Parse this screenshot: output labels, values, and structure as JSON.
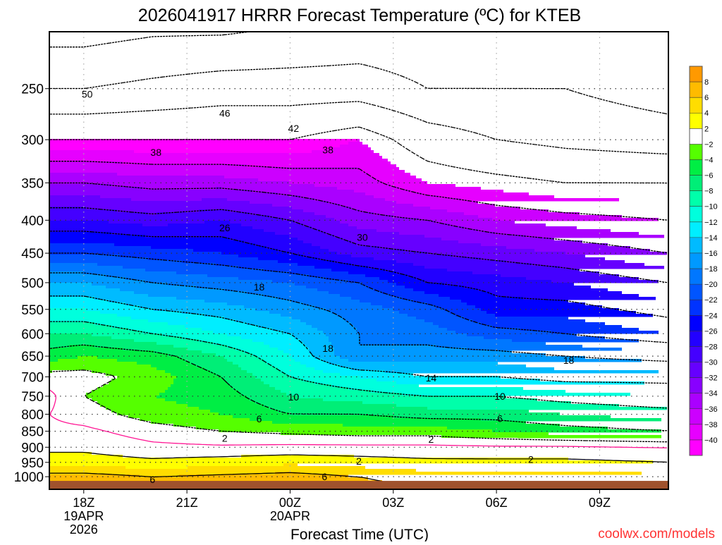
{
  "chart_data": {
    "type": "heatmap",
    "title": "2026041917 HRRR Forecast Temperature (ºC) for KTEB",
    "xlabel": "Forecast Time (UTC)",
    "ylabel": "",
    "x_hours": [
      0,
      1,
      3,
      5,
      7,
      9,
      11,
      13,
      15,
      18
    ],
    "x_range": [
      0,
      18
    ],
    "y_levels": [
      200,
      250,
      300,
      350,
      400,
      450,
      500,
      550,
      600,
      650,
      700,
      750,
      800,
      850,
      900,
      950,
      1000,
      1050
    ],
    "ylim": [
      204,
      1046
    ],
    "y_scale": "log",
    "y_reversed": true,
    "values": [
      [
        -56,
        -56,
        -55,
        -55,
        -54,
        -53,
        -53,
        -53,
        -53,
        -53
      ],
      [
        -50,
        -50,
        -49,
        -48,
        -48,
        -48,
        -50,
        -50,
        -50,
        -52
      ],
      [
        -42,
        -42,
        -42,
        -42,
        -42,
        -40,
        -44,
        -46,
        -47,
        -48
      ],
      [
        -34,
        -34,
        -35,
        -35,
        -36,
        -37,
        -40,
        -41,
        -42,
        -42
      ],
      [
        -28,
        -28,
        -29,
        -28,
        -30,
        -33,
        -34,
        -36,
        -37,
        -38
      ],
      [
        -22,
        -22,
        -23,
        -24,
        -26,
        -29,
        -30,
        -31,
        -32,
        -34
      ],
      [
        -16,
        -16,
        -18,
        -19,
        -20,
        -22,
        -26,
        -27,
        -28,
        -30
      ],
      [
        -12,
        -12,
        -14,
        -15,
        -17,
        -19,
        -21,
        -25,
        -25,
        -27
      ],
      [
        -8,
        -8,
        -10,
        -12,
        -14,
        -18,
        -19,
        -21,
        -22,
        -24
      ],
      [
        -5,
        -4,
        -5,
        -8,
        -12,
        -18,
        -17,
        -17,
        -18,
        -19
      ],
      [
        -1,
        -1,
        -3,
        -6,
        -10,
        -12,
        -14,
        -14,
        -15,
        -15
      ],
      [
        0.5,
        -2,
        -4,
        -5,
        -8,
        -9,
        -10,
        -10,
        -11,
        -12
      ],
      [
        0,
        -1,
        -3,
        -4,
        -6,
        -6,
        -7,
        -7,
        -8,
        -9
      ],
      [
        0.5,
        0.5,
        -1,
        -2,
        -2.5,
        -3,
        -3,
        -4,
        -5,
        -6
      ],
      [
        1.5,
        1.5,
        0.5,
        0.3,
        0.5,
        0.5,
        0.5,
        0.3,
        0.3,
        0
      ],
      [
        3,
        3,
        2.5,
        3,
        3.5,
        3,
        2.5,
        2.5,
        2.5,
        2
      ],
      [
        7,
        7,
        6,
        6.5,
        7,
        6,
        5,
        5,
        5,
        4.5
      ],
      [
        9,
        9,
        8,
        8,
        8,
        7,
        6,
        6,
        6,
        5
      ]
    ],
    "surface_pressure": 1015,
    "yticks": [
      "250",
      "300",
      "350",
      "400",
      "450",
      "500",
      "550",
      "600",
      "650",
      "700",
      "750",
      "800",
      "850",
      "900",
      "950",
      "1000"
    ],
    "xticks": [
      {
        "hour": 1,
        "label": "18Z",
        "sub1": "19APR",
        "sub2": "2026"
      },
      {
        "hour": 4,
        "label": "21Z"
      },
      {
        "hour": 7,
        "label": "00Z",
        "sub1": "20APR"
      },
      {
        "hour": 10,
        "label": "03Z"
      },
      {
        "hour": 13,
        "label": "06Z"
      },
      {
        "hour": 16,
        "label": "09Z"
      }
    ],
    "grid": true,
    "contour_levels": [
      -54,
      -50,
      -46,
      -42,
      -38,
      -34,
      -30,
      -26,
      -22,
      -18,
      -14,
      -10,
      -6,
      -2,
      0,
      2,
      6
    ],
    "contour_labels": [
      {
        "text": "50",
        "hour": 1.1,
        "p": 255
      },
      {
        "text": "46",
        "hour": 5.1,
        "p": 273
      },
      {
        "text": "42",
        "hour": 7.1,
        "p": 288
      },
      {
        "text": "38",
        "hour": 3.1,
        "p": 314
      },
      {
        "text": "38",
        "hour": 8.1,
        "p": 311
      },
      {
        "text": "26",
        "hour": 5.1,
        "p": 411
      },
      {
        "text": "30",
        "hour": 9.1,
        "p": 425
      },
      {
        "text": "18",
        "hour": 6.1,
        "p": 508
      },
      {
        "text": "18",
        "hour": 8.1,
        "p": 632
      },
      {
        "text": "18",
        "hour": 15.1,
        "p": 660
      },
      {
        "text": "14",
        "hour": 11.1,
        "p": 703
      },
      {
        "text": "10",
        "hour": 7.1,
        "p": 752
      },
      {
        "text": "10",
        "hour": 13.1,
        "p": 750
      },
      {
        "text": "6",
        "hour": 6.1,
        "p": 813
      },
      {
        "text": "6",
        "hour": 13.1,
        "p": 812
      },
      {
        "text": "2",
        "hour": 5.1,
        "p": 871
      },
      {
        "text": "2",
        "hour": 11.1,
        "p": 875
      },
      {
        "text": "2",
        "hour": 9.0,
        "p": 946
      },
      {
        "text": "2",
        "hour": 14.0,
        "p": 940
      },
      {
        "text": "6",
        "hour": 3.0,
        "p": 1010
      },
      {
        "text": "6",
        "hour": 8.0,
        "p": 1000
      }
    ],
    "colorbar": {
      "bounds": [
        -40,
        -38,
        -36,
        -34,
        -32,
        -30,
        -28,
        -26,
        -24,
        -22,
        -20,
        -18,
        -16,
        -14,
        -12,
        -10,
        -8,
        -6,
        -4,
        -2,
        2,
        4,
        6,
        8
      ],
      "labels": [
        "-40",
        "-38",
        "-36",
        "-34",
        "-32",
        "-30",
        "-28",
        "-26",
        "-24",
        "-22",
        "-20",
        "-18",
        "-16",
        "-14",
        "-12",
        "-10",
        "-8",
        "-6",
        "-4",
        "-2",
        "2",
        "4",
        "6",
        "8"
      ],
      "colors": [
        "#ff00ff",
        "#e600ff",
        "#cc00ff",
        "#aa00ff",
        "#8800ff",
        "#6600ff",
        "#4400ff",
        "#2200ff",
        "#0000ff",
        "#0033ff",
        "#0055ff",
        "#0077ff",
        "#0099ff",
        "#00bbff",
        "#00eeff",
        "#00ffdd",
        "#00ffaa",
        "#00ee77",
        "#00ee44",
        "#55ff00",
        "#ffffff",
        "#ffff00",
        "#ffdd00",
        "#ffbb00",
        "#ff9900"
      ]
    },
    "ground_color": "#a0522d",
    "zero_contour_color": "#ff1493"
  },
  "watermark": "coolwx.com/models"
}
